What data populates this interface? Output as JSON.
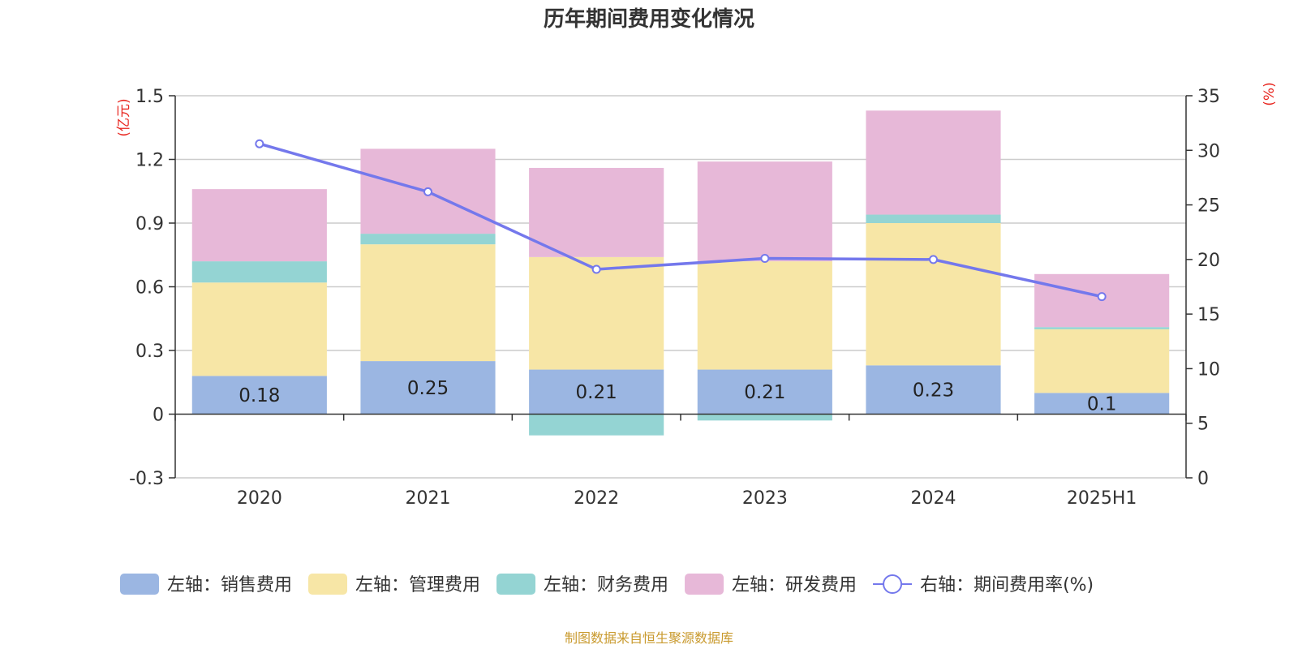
{
  "chart_data": {
    "type": "bar",
    "title": "历年期间费用变化情况",
    "categories": [
      "2020",
      "2021",
      "2022",
      "2023",
      "2024",
      "2025H1"
    ],
    "left_axis": {
      "unit": "(亿元)",
      "ylim": [
        -0.3,
        1.5
      ],
      "ticks": [
        -0.3,
        0,
        0.3,
        0.6,
        0.9,
        1.2,
        1.5
      ],
      "tick_labels": [
        "-0.3",
        "0",
        "0.3",
        "0.6",
        "0.9",
        "1.2",
        "1.5"
      ]
    },
    "right_axis": {
      "unit": "(%)",
      "ylim": [
        0,
        35
      ],
      "ticks": [
        0,
        5,
        10,
        15,
        20,
        25,
        30,
        35
      ],
      "tick_labels": [
        "0",
        "5",
        "10",
        "15",
        "20",
        "25",
        "30",
        "35"
      ]
    },
    "series": [
      {
        "name": "左轴：销售费用",
        "type": "bar",
        "axis": "left",
        "color": "#9bb6e2",
        "values": [
          0.18,
          0.25,
          0.21,
          0.21,
          0.23,
          0.1
        ],
        "data_labels": [
          "0.18",
          "0.25",
          "0.21",
          "0.21",
          "0.23",
          "0.1"
        ]
      },
      {
        "name": "左轴：管理费用",
        "type": "bar",
        "axis": "left",
        "color": "#f7e6a6",
        "values": [
          0.44,
          0.55,
          0.53,
          0.51,
          0.67,
          0.3
        ]
      },
      {
        "name": "左轴：财务费用",
        "type": "bar",
        "axis": "left",
        "color": "#94d4d3",
        "values": [
          0.1,
          0.05,
          -0.1,
          -0.03,
          0.04,
          0.01
        ]
      },
      {
        "name": "左轴：研发费用",
        "type": "bar",
        "axis": "left",
        "color": "#e7b8d8",
        "values": [
          0.34,
          0.4,
          0.42,
          0.47,
          0.49,
          0.25
        ]
      },
      {
        "name": "右轴：期间费用率(%)",
        "type": "line",
        "axis": "right",
        "color": "#7478ec",
        "values": [
          30.6,
          26.2,
          19.1,
          20.1,
          20.0,
          16.6
        ]
      }
    ],
    "grid": true,
    "legend_position": "bottom"
  },
  "source_note": "制图数据来自恒生聚源数据库"
}
